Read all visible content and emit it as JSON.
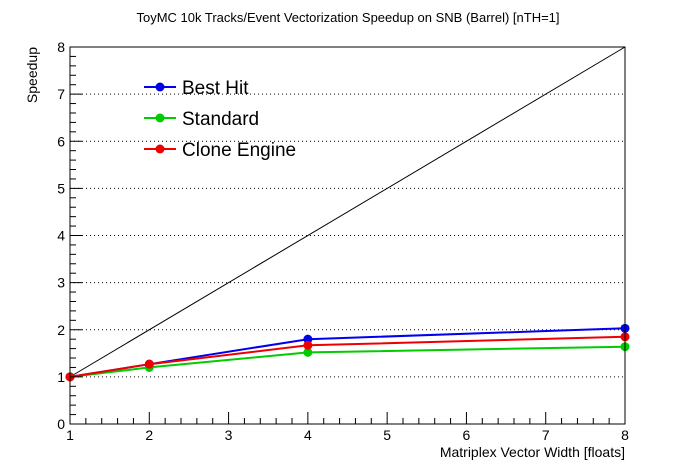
{
  "chart_data": {
    "type": "line",
    "title": "ToyMC 10k Tracks/Event Vectorization Speedup on SNB (Barrel) [nTH=1]",
    "xlabel": "Matriplex Vector Width [floats]",
    "ylabel": "Speedup",
    "xlim": [
      1,
      8
    ],
    "ylim": [
      0,
      8
    ],
    "x_ticks": [
      1,
      2,
      3,
      4,
      5,
      6,
      7,
      8
    ],
    "y_ticks": [
      0,
      1,
      2,
      3,
      4,
      5,
      6,
      7,
      8
    ],
    "grid": "horizontal dotted",
    "legend_position": "top-left",
    "reference_line": {
      "x": [
        1,
        8
      ],
      "y": [
        1,
        8
      ],
      "color": "#000000"
    },
    "series": [
      {
        "name": "Best Hit",
        "color": "#0000ee",
        "x": [
          1,
          2,
          4,
          8
        ],
        "y": [
          1.0,
          1.27,
          1.8,
          2.03
        ]
      },
      {
        "name": "Standard",
        "color": "#00cc00",
        "x": [
          1,
          2,
          4,
          8
        ],
        "y": [
          1.0,
          1.2,
          1.52,
          1.64
        ]
      },
      {
        "name": "Clone Engine",
        "color": "#ee0000",
        "x": [
          1,
          2,
          4,
          8
        ],
        "y": [
          1.0,
          1.27,
          1.67,
          1.85
        ]
      }
    ]
  }
}
